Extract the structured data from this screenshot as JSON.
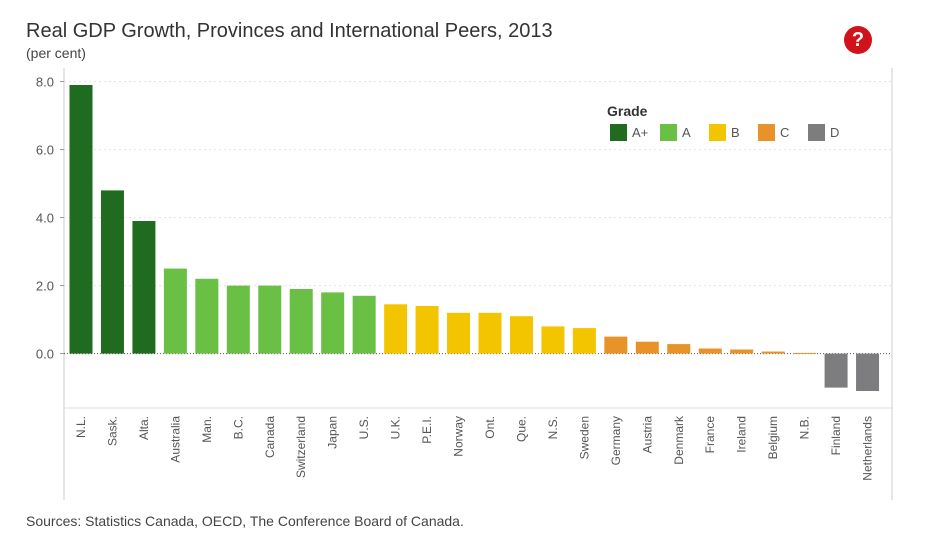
{
  "help_icon_label": "?",
  "source": "Sources: Statistics Canada, OECD, The Conference Board of Canada.",
  "colors": {
    "A+": "#1f6b1f",
    "A": "#6abf45",
    "B": "#f2c500",
    "C": "#e8932a",
    "D": "#7d7d80"
  },
  "chart_data": {
    "type": "bar",
    "title": "Real GDP Growth, Provinces and International Peers, 2013",
    "subtitle": "(per cent)",
    "xlabel": "",
    "ylabel": "",
    "ylim": [
      -1.6,
      8.4
    ],
    "yticks": [
      0.0,
      2.0,
      4.0,
      6.0,
      8.0
    ],
    "ytick_labels": [
      "0.0",
      "2.0",
      "4.0",
      "6.0",
      "8.0"
    ],
    "grid": true,
    "legend": {
      "title": "Grade",
      "position": "top-right",
      "entries": [
        "A+",
        "A",
        "B",
        "C",
        "D"
      ]
    },
    "categories": [
      "N.L.",
      "Sask.",
      "Alta.",
      "Australia",
      "Man.",
      "B.C.",
      "Canada",
      "Switzerland",
      "Japan",
      "U.S.",
      "U.K.",
      "P.E.I.",
      "Norway",
      "Ont.",
      "Que.",
      "N.S.",
      "Sweden",
      "Germany",
      "Austria",
      "Denmark",
      "France",
      "Ireland",
      "Belgium",
      "N.B.",
      "Finland",
      "Netherlands"
    ],
    "values": [
      7.9,
      4.8,
      3.9,
      2.5,
      2.2,
      2.0,
      2.0,
      1.9,
      1.8,
      1.7,
      1.45,
      1.4,
      1.2,
      1.2,
      1.1,
      0.8,
      0.75,
      0.5,
      0.35,
      0.28,
      0.15,
      0.12,
      0.06,
      0.02,
      -1.0,
      -1.1
    ],
    "grades": [
      "A+",
      "A+",
      "A+",
      "A",
      "A",
      "A",
      "A",
      "A",
      "A",
      "A",
      "B",
      "B",
      "B",
      "B",
      "B",
      "B",
      "B",
      "C",
      "C",
      "C",
      "C",
      "C",
      "C",
      "C",
      "D",
      "D"
    ]
  }
}
